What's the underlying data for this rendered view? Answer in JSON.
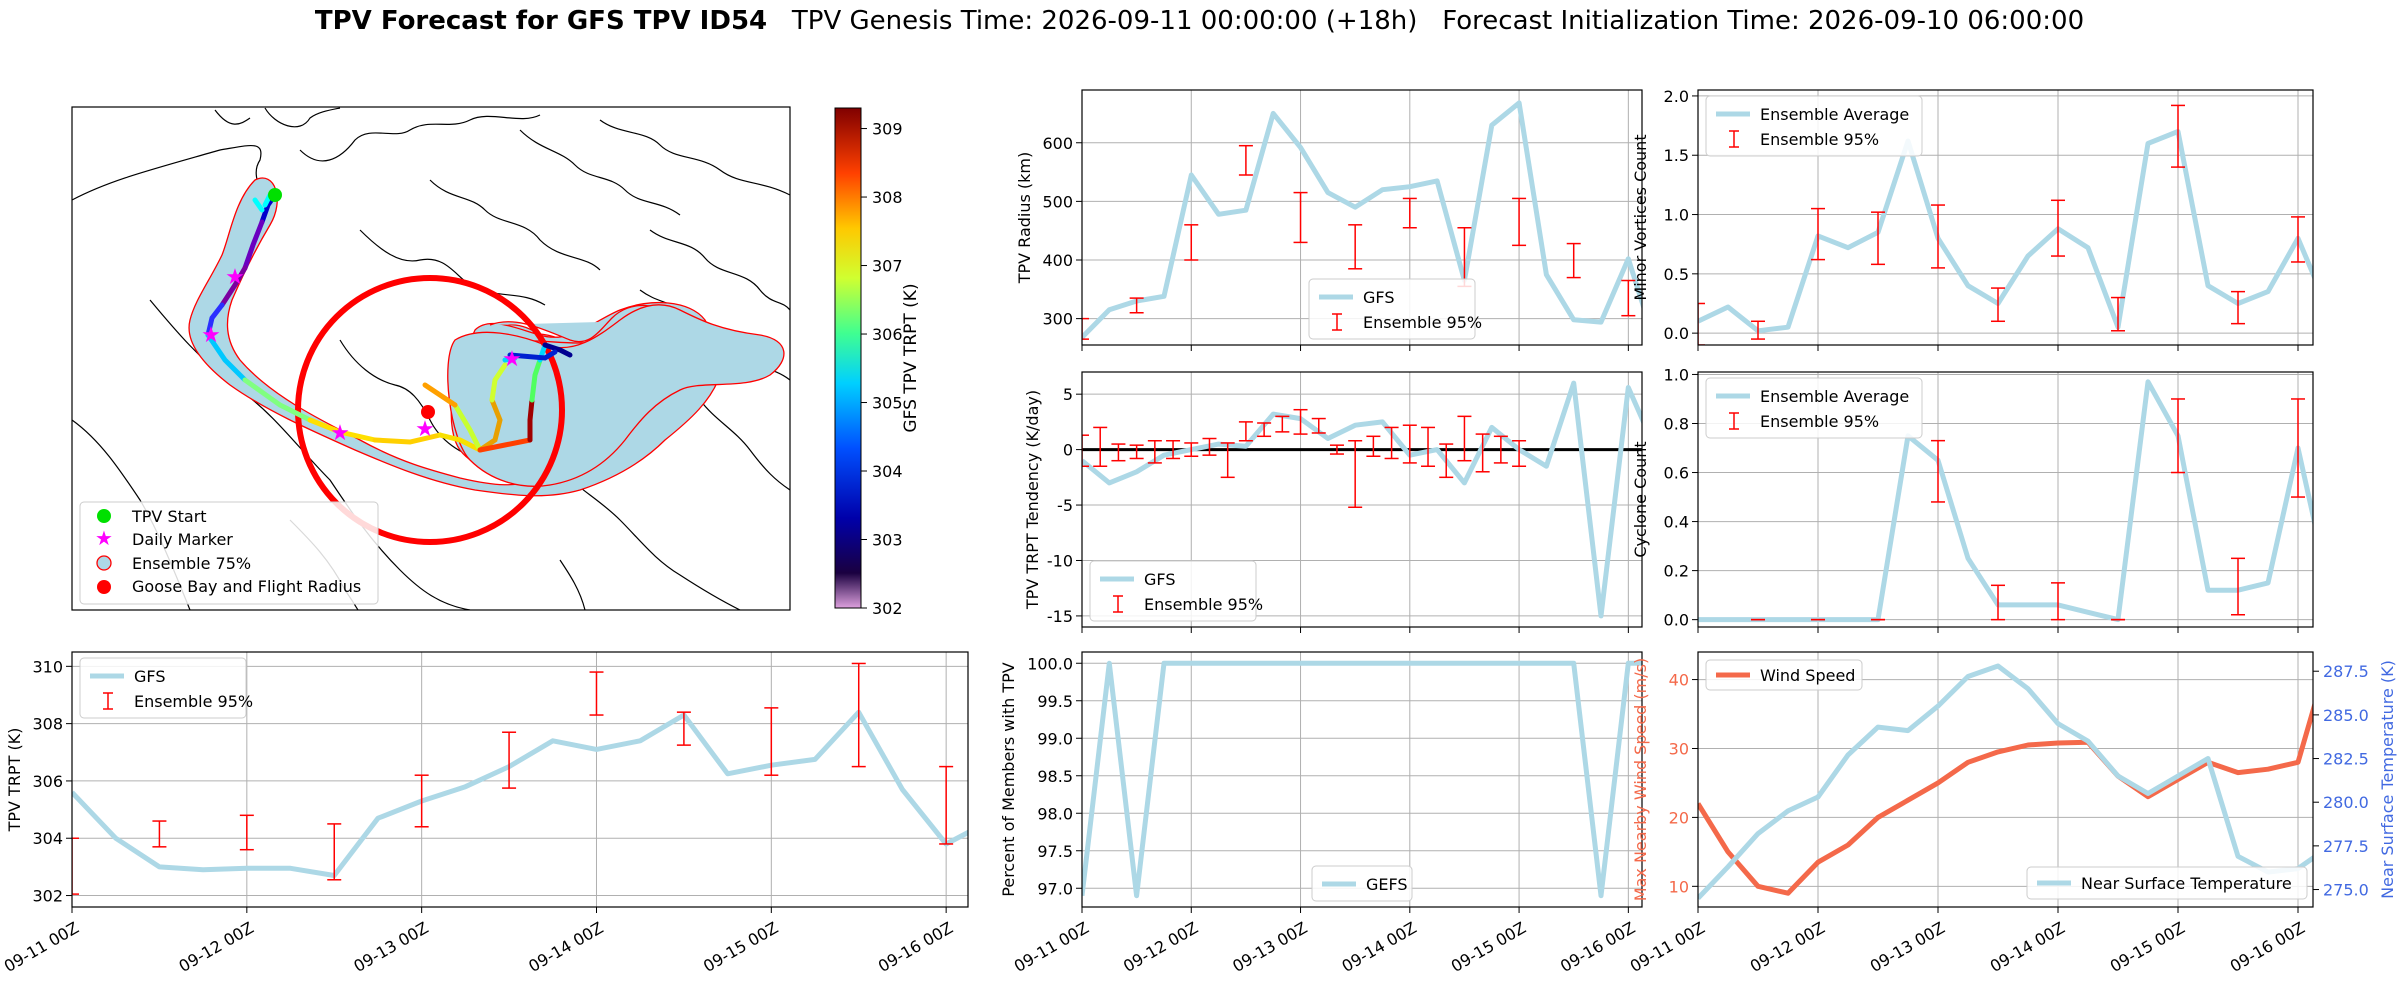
{
  "title": {
    "bold": "TPV Forecast for GFS TPV ID54",
    "genesis": "TPV Genesis Time: 2026-09-11 00:00:00 (+18h)",
    "init": "Forecast Initialization Time: 2026-09-10 06:00:00"
  },
  "colors": {
    "gfs_line": "#add8e6",
    "ensemble": "#ff0000",
    "wind": "#f4694a",
    "temperature_axis": "#4169e1",
    "ensemble_fill": "#add8e6",
    "flight_radius": "#ff0000"
  },
  "map": {
    "legend": [
      "TPV Start",
      "Daily Marker",
      "Ensemble 75%",
      "Goose Bay and Flight Radius"
    ],
    "colorbar": {
      "label": "GFS TPV TRPT (K)",
      "ticks": [
        302,
        303,
        304,
        305,
        306,
        307,
        308,
        309
      ],
      "range": [
        302,
        309.3
      ],
      "colormap": "jet"
    }
  },
  "chart_data": [
    {
      "id": "trpt",
      "type": "line",
      "ylabel": "TPV TRPT (K)",
      "x_ticks": [
        "09-11 00Z",
        "09-12 00Z",
        "09-13 00Z",
        "09-14 00Z",
        "09-15 00Z",
        "09-16 00Z"
      ],
      "xlim_hours": [
        0,
        123
      ],
      "y_ticks": [
        302,
        304,
        306,
        308,
        310
      ],
      "ylim": [
        301.6,
        310.5
      ],
      "grid": true,
      "legend": [
        "GFS",
        "Ensemble 95%"
      ],
      "legend_position": "upper-left",
      "series": [
        {
          "name": "GFS",
          "values": [
            305.6,
            304.0,
            303.0,
            302.9,
            302.95,
            302.95,
            302.7,
            304.7,
            305.3,
            305.8,
            306.5,
            307.4,
            307.1,
            307.4,
            308.3,
            306.25,
            306.55,
            306.75,
            308.4,
            305.7,
            303.8,
            304.6
          ]
        }
      ],
      "ensemble_95": [
        {
          "hour": 0,
          "low": 302.05,
          "high": 304.0
        },
        {
          "hour": 12,
          "low": 303.7,
          "high": 304.6
        },
        {
          "hour": 24,
          "low": 303.6,
          "high": 304.8
        },
        {
          "hour": 36,
          "low": 302.55,
          "high": 304.5
        },
        {
          "hour": 48,
          "low": 304.4,
          "high": 306.2
        },
        {
          "hour": 60,
          "low": 305.75,
          "high": 307.7
        },
        {
          "hour": 72,
          "low": 308.3,
          "high": 309.8
        },
        {
          "hour": 84,
          "low": 307.25,
          "high": 308.4
        },
        {
          "hour": 96,
          "low": 306.2,
          "high": 308.55
        },
        {
          "hour": 108,
          "low": 306.5,
          "high": 310.1
        },
        {
          "hour": 120,
          "low": 303.8,
          "high": 306.5
        }
      ]
    },
    {
      "id": "radius",
      "type": "line",
      "ylabel": "TPV Radius (km)",
      "xlim_hours": [
        0,
        123
      ],
      "y_ticks": [
        300,
        400,
        500,
        600
      ],
      "ylim": [
        255,
        690
      ],
      "grid": true,
      "legend": [
        "GFS",
        "Ensemble 95%"
      ],
      "legend_position": "lower-center",
      "series": [
        {
          "name": "GFS",
          "values": [
            268,
            315,
            330,
            338,
            545,
            478,
            485,
            650,
            592,
            515,
            490,
            520,
            525,
            535,
            365,
            630,
            668,
            375,
            298,
            294,
            402,
            255
          ]
        }
      ],
      "ensemble_95": [
        {
          "hour": 0,
          "low": 265,
          "high": 300
        },
        {
          "hour": 12,
          "low": 310,
          "high": 335
        },
        {
          "hour": 24,
          "low": 400,
          "high": 460
        },
        {
          "hour": 36,
          "low": 545,
          "high": 595
        },
        {
          "hour": 48,
          "low": 430,
          "high": 515
        },
        {
          "hour": 60,
          "low": 385,
          "high": 460
        },
        {
          "hour": 72,
          "low": 455,
          "high": 505
        },
        {
          "hour": 84,
          "low": 355,
          "high": 455
        },
        {
          "hour": 96,
          "low": 425,
          "high": 505
        },
        {
          "hour": 108,
          "low": 370,
          "high": 428
        },
        {
          "hour": 120,
          "low": 305,
          "high": 365
        }
      ]
    },
    {
      "id": "tendency",
      "type": "line",
      "ylabel": "TPV TRPT Tendency (K/day)",
      "xlim_hours": [
        0,
        123
      ],
      "y_ticks": [
        -15,
        -10,
        -5,
        0,
        5
      ],
      "ylim": [
        -16,
        7
      ],
      "zero_line": true,
      "grid": true,
      "legend": [
        "GFS",
        "Ensemble 95%"
      ],
      "legend_position": "lower-left",
      "series": [
        {
          "name": "GFS",
          "values": [
            -1.0,
            -3.0,
            -2.0,
            -0.5,
            0.0,
            0.5,
            0.3,
            3.2,
            2.8,
            1.0,
            2.2,
            2.5,
            -0.5,
            0.0,
            -3.0,
            2.0,
            0.0,
            -1.5,
            6.0,
            -15.0,
            5.6,
            0.0
          ]
        }
      ],
      "ensemble_95": [
        {
          "hour": 0,
          "low": -1.5,
          "high": 1.3
        },
        {
          "hour": 4,
          "low": -1.5,
          "high": 2.0
        },
        {
          "hour": 8,
          "low": -1.0,
          "high": 0.5
        },
        {
          "hour": 12,
          "low": -0.8,
          "high": 0.4
        },
        {
          "hour": 16,
          "low": -1.2,
          "high": 0.8
        },
        {
          "hour": 20,
          "low": -0.8,
          "high": 0.8
        },
        {
          "hour": 24,
          "low": -0.6,
          "high": 0.6
        },
        {
          "hour": 28,
          "low": -0.5,
          "high": 1.0
        },
        {
          "hour": 32,
          "low": -2.5,
          "high": 0.6
        },
        {
          "hour": 36,
          "low": 0.8,
          "high": 2.5
        },
        {
          "hour": 40,
          "low": 1.2,
          "high": 2.4
        },
        {
          "hour": 44,
          "low": 1.6,
          "high": 3.0
        },
        {
          "hour": 48,
          "low": 1.4,
          "high": 3.6
        },
        {
          "hour": 52,
          "low": 1.5,
          "high": 2.8
        },
        {
          "hour": 56,
          "low": -0.4,
          "high": 0.4
        },
        {
          "hour": 60,
          "low": -5.2,
          "high": 0.8
        },
        {
          "hour": 64,
          "low": -0.6,
          "high": 1.2
        },
        {
          "hour": 68,
          "low": -0.8,
          "high": 2.0
        },
        {
          "hour": 72,
          "low": -1.2,
          "high": 2.2
        },
        {
          "hour": 76,
          "low": -1.5,
          "high": 2.0
        },
        {
          "hour": 80,
          "low": -2.5,
          "high": 0.5
        },
        {
          "hour": 84,
          "low": -1.0,
          "high": 3.0
        },
        {
          "hour": 88,
          "low": -2.0,
          "high": 1.4
        },
        {
          "hour": 92,
          "low": -1.2,
          "high": 1.2
        },
        {
          "hour": 96,
          "low": -1.5,
          "high": 0.8
        }
      ]
    },
    {
      "id": "members",
      "type": "line",
      "ylabel": "Percent of Members with TPV",
      "x_ticks": [
        "09-11 00Z",
        "09-12 00Z",
        "09-13 00Z",
        "09-14 00Z",
        "09-15 00Z",
        "09-16 00Z"
      ],
      "xlim_hours": [
        0,
        123
      ],
      "y_ticks": [
        97.0,
        97.5,
        98.0,
        98.5,
        99.0,
        99.5,
        100.0
      ],
      "y_tick_labels": [
        "97.0",
        "97.5",
        "98.0",
        "98.5",
        "99.0",
        "99.5",
        "100.0"
      ],
      "ylim": [
        96.75,
        100.15
      ],
      "grid": true,
      "legend": [
        "GEFS"
      ],
      "legend_position": "lower-center",
      "series": [
        {
          "name": "GEFS",
          "values": [
            96.9,
            100.0,
            96.9,
            100.0,
            100.0,
            100.0,
            100.0,
            100.0,
            100.0,
            100.0,
            100.0,
            100.0,
            100.0,
            100.0,
            100.0,
            100.0,
            100.0,
            100.0,
            100.0,
            96.9,
            100.0,
            100.0
          ]
        }
      ]
    },
    {
      "id": "minor",
      "type": "line",
      "ylabel": "Minor Vortices Count",
      "xlim_hours": [
        0,
        123
      ],
      "y_ticks": [
        0.0,
        0.5,
        1.0,
        1.5,
        2.0
      ],
      "y_tick_labels": [
        "0.0",
        "0.5",
        "1.0",
        "1.5",
        "2.0"
      ],
      "ylim": [
        -0.1,
        2.05
      ],
      "grid": true,
      "legend": [
        "Ensemble Average",
        "Ensemble 95%"
      ],
      "legend_position": "upper-left",
      "series": [
        {
          "name": "Ensemble Average",
          "values": [
            0.1,
            0.22,
            0.02,
            0.05,
            0.82,
            0.72,
            0.85,
            1.62,
            0.8,
            0.4,
            0.25,
            0.65,
            0.88,
            0.72,
            0.05,
            1.6,
            1.7,
            0.4,
            0.25,
            0.35,
            0.8,
            0.2
          ]
        }
      ],
      "ensemble_95": [
        {
          "hour": 0,
          "low": -0.1,
          "high": 0.25
        },
        {
          "hour": 12,
          "low": -0.05,
          "high": 0.1
        },
        {
          "hour": 24,
          "low": 0.62,
          "high": 1.05
        },
        {
          "hour": 36,
          "low": 0.58,
          "high": 1.02
        },
        {
          "hour": 48,
          "low": 0.55,
          "high": 1.08
        },
        {
          "hour": 60,
          "low": 0.1,
          "high": 0.38
        },
        {
          "hour": 72,
          "low": 0.65,
          "high": 1.12
        },
        {
          "hour": 84,
          "low": 0.02,
          "high": 0.3
        },
        {
          "hour": 96,
          "low": 1.4,
          "high": 1.92
        },
        {
          "hour": 108,
          "low": 0.08,
          "high": 0.35
        },
        {
          "hour": 120,
          "low": 0.6,
          "high": 0.98
        }
      ]
    },
    {
      "id": "cyclone",
      "type": "line",
      "ylabel": "Cyclone Count",
      "xlim_hours": [
        0,
        123
      ],
      "y_ticks": [
        0.0,
        0.2,
        0.4,
        0.6,
        0.8,
        1.0
      ],
      "y_tick_labels": [
        "0.0",
        "0.2",
        "0.4",
        "0.6",
        "0.8",
        "1.0"
      ],
      "ylim": [
        -0.03,
        1.01
      ],
      "grid": true,
      "legend": [
        "Ensemble Average",
        "Ensemble 95%"
      ],
      "legend_position": "upper-left",
      "series": [
        {
          "name": "Ensemble Average",
          "values": [
            0.0,
            0.0,
            0.0,
            0.0,
            0.0,
            0.0,
            0.0,
            0.75,
            0.65,
            0.25,
            0.06,
            0.06,
            0.06,
            0.03,
            0.0,
            0.97,
            0.75,
            0.12,
            0.12,
            0.15,
            0.7,
            0.15
          ]
        }
      ],
      "ensemble_95": [
        {
          "hour": 12,
          "low": 0.0,
          "high": 0.0
        },
        {
          "hour": 24,
          "low": 0.0,
          "high": 0.0
        },
        {
          "hour": 36,
          "low": 0.0,
          "high": 0.0
        },
        {
          "hour": 48,
          "low": 0.48,
          "high": 0.73
        },
        {
          "hour": 60,
          "low": 0.0,
          "high": 0.14
        },
        {
          "hour": 72,
          "low": 0.0,
          "high": 0.15
        },
        {
          "hour": 84,
          "low": 0.0,
          "high": 0.0
        },
        {
          "hour": 96,
          "low": 0.6,
          "high": 0.9
        },
        {
          "hour": 108,
          "low": 0.02,
          "high": 0.25
        },
        {
          "hour": 120,
          "low": 0.5,
          "high": 0.9
        }
      ]
    },
    {
      "id": "wind_temp",
      "type": "line",
      "ylabel": "Max Nearby Wind Speed (m/s)",
      "ylabel_right": "Near Surface Temperature (K)",
      "x_ticks": [
        "09-11 00Z",
        "09-12 00Z",
        "09-13 00Z",
        "09-14 00Z",
        "09-15 00Z",
        "09-16 00Z"
      ],
      "xlim_hours": [
        0,
        123
      ],
      "y_ticks": [
        10,
        20,
        30,
        40
      ],
      "ylim": [
        7,
        44
      ],
      "y2_ticks": [
        275.0,
        277.5,
        280.0,
        282.5,
        285.0,
        287.5
      ],
      "y2_tick_labels": [
        "275.0",
        "277.5",
        "280.0",
        "282.5",
        "285.0",
        "287.5"
      ],
      "y2lim": [
        274.0,
        288.6
      ],
      "grid": true,
      "legend": [
        "Wind Speed",
        "Near Surface Temperature"
      ],
      "series": [
        {
          "name": "Wind Speed",
          "axis": "left",
          "values": [
            22,
            15,
            10,
            9,
            13.5,
            16,
            20,
            22.5,
            25,
            28,
            29.5,
            30.5,
            30.8,
            30.9,
            26,
            23,
            25.5,
            28,
            26.5,
            27,
            28,
            43
          ]
        },
        {
          "name": "Near Surface Temperature",
          "axis": "right",
          "values": [
            274.5,
            276.3,
            278.2,
            279.5,
            280.3,
            282.7,
            284.3,
            284.1,
            285.5,
            287.2,
            287.8,
            286.5,
            284.5,
            283.5,
            281.5,
            280.5,
            281.5,
            282.5,
            276.9,
            276.0,
            276.2,
            277.4
          ]
        }
      ]
    }
  ]
}
